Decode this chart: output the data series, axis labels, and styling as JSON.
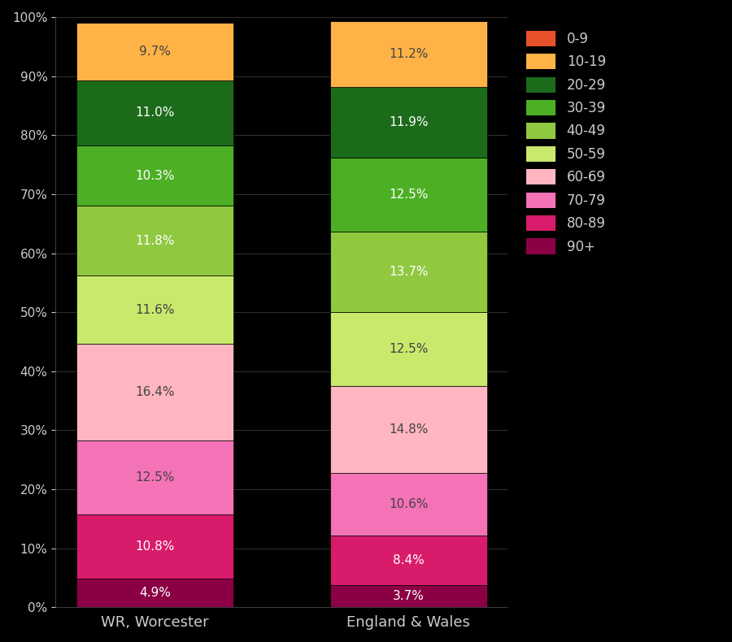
{
  "categories": [
    "WR, Worcester",
    "England & Wales"
  ],
  "segments": [
    {
      "label": "90+",
      "color": "#8B0045",
      "values": [
        4.9,
        3.7
      ],
      "text_labels": [
        "4.9%",
        "3.7%"
      ],
      "text_color": "white"
    },
    {
      "label": "80-89",
      "color": "#D81B6A",
      "values": [
        10.8,
        8.4
      ],
      "text_labels": [
        "10.8%",
        "8.4%"
      ],
      "text_color": "white"
    },
    {
      "label": "70-79",
      "color": "#F472B6",
      "values": [
        12.5,
        10.6
      ],
      "text_labels": [
        "12.5%",
        "10.6%"
      ],
      "text_color": "dark"
    },
    {
      "label": "60-69",
      "color": "#FFB6C1",
      "values": [
        16.4,
        14.8
      ],
      "text_labels": [
        "16.4%",
        "14.8%"
      ],
      "text_color": "dark"
    },
    {
      "label": "50-59",
      "color": "#C8E96B",
      "values": [
        11.6,
        12.5
      ],
      "text_labels": [
        "11.6%",
        "12.5%"
      ],
      "text_color": "dark"
    },
    {
      "label": "40-49",
      "color": "#90C840",
      "values": [
        11.8,
        13.7
      ],
      "text_labels": [
        "11.8%",
        "13.7%"
      ],
      "text_color": "white"
    },
    {
      "label": "30-39",
      "color": "#4CAF24",
      "values": [
        10.3,
        12.5
      ],
      "text_labels": [
        "10.3%",
        "12.5%"
      ],
      "text_color": "white"
    },
    {
      "label": "20-29",
      "color": "#1B6B1B",
      "values": [
        11.0,
        11.9
      ],
      "text_labels": [
        "11.0%",
        "11.9%"
      ],
      "text_color": "white"
    },
    {
      "label": "10-19",
      "color": "#FFB347",
      "values": [
        9.7,
        11.2
      ],
      "text_labels": [
        "9.7%",
        "11.2%"
      ],
      "text_color": "dark"
    },
    {
      "label": "0-9",
      "color": "#E8522A",
      "values": [
        0.0,
        0.0
      ],
      "text_labels": [
        "",
        ""
      ],
      "text_color": "white"
    }
  ],
  "background_color": "#000000",
  "text_color_light": "#cccccc",
  "bar_text_dark": "#444444",
  "bar_text_light": "#ffffff",
  "bar_width": 0.62,
  "legend_order": [
    "0-9",
    "10-19",
    "20-29",
    "30-39",
    "40-49",
    "50-59",
    "60-69",
    "70-79",
    "80-89",
    "90+"
  ]
}
